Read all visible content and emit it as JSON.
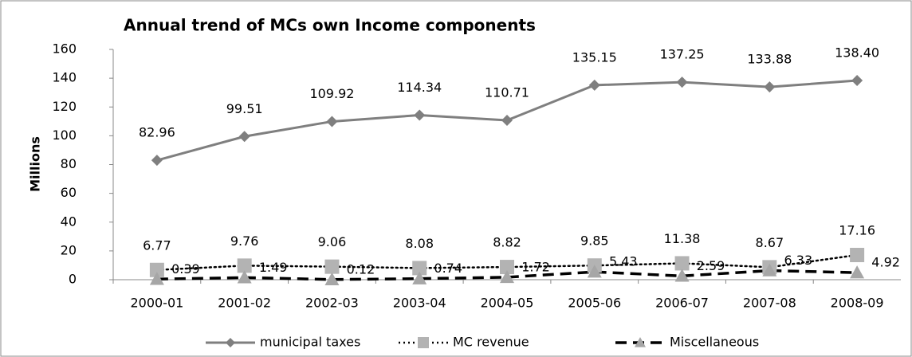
{
  "chart_data": {
    "type": "line",
    "title": "Annual trend of MCs own Income components",
    "y_label": "Millions",
    "categories": [
      "2000-01",
      "2001-02",
      "2002-03",
      "2003-04",
      "2004-05",
      "2005-06",
      "2006-07",
      "2007-08",
      "2008-09"
    ],
    "series": [
      {
        "name": "municipal taxes",
        "color": "#7f7f7f",
        "marker_color": "#7f7f7f",
        "line_style": "solid",
        "marker": "diamond",
        "values": [
          82.96,
          99.51,
          109.92,
          114.34,
          110.71,
          135.15,
          137.25,
          133.88,
          138.4
        ],
        "value_labels": [
          "82.96",
          "99.51",
          "109.92",
          "114.34",
          "110.71",
          "135.15",
          "137.25",
          "133.88",
          "138.40"
        ]
      },
      {
        "name": "MC revenue",
        "color": "#000000",
        "marker_color": "#b3b3b3",
        "line_style": "dotted",
        "marker": "square",
        "values": [
          6.77,
          9.76,
          9.06,
          8.08,
          8.82,
          9.85,
          11.38,
          8.67,
          17.16
        ],
        "value_labels": [
          "6.77",
          "9.76",
          "9.06",
          "8.08",
          "8.82",
          "9.85",
          "11.38",
          "8.67",
          "17.16"
        ]
      },
      {
        "name": "Miscellaneous",
        "color": "#000000",
        "marker_color": "#a6a6a6",
        "line_style": "dashed",
        "marker": "triangle",
        "values": [
          0.39,
          1.49,
          0.12,
          0.74,
          1.72,
          5.43,
          2.59,
          6.33,
          4.92
        ],
        "value_labels": [
          "0.39",
          "1.49",
          "0.12",
          "0.74",
          "1.72",
          "5.43",
          "2.59",
          "6.33",
          "4.92"
        ]
      }
    ],
    "ylim": [
      0,
      160
    ],
    "yticks": [
      0,
      20,
      40,
      60,
      80,
      100,
      120,
      140,
      160
    ],
    "grid": false,
    "legend": "bottom"
  }
}
